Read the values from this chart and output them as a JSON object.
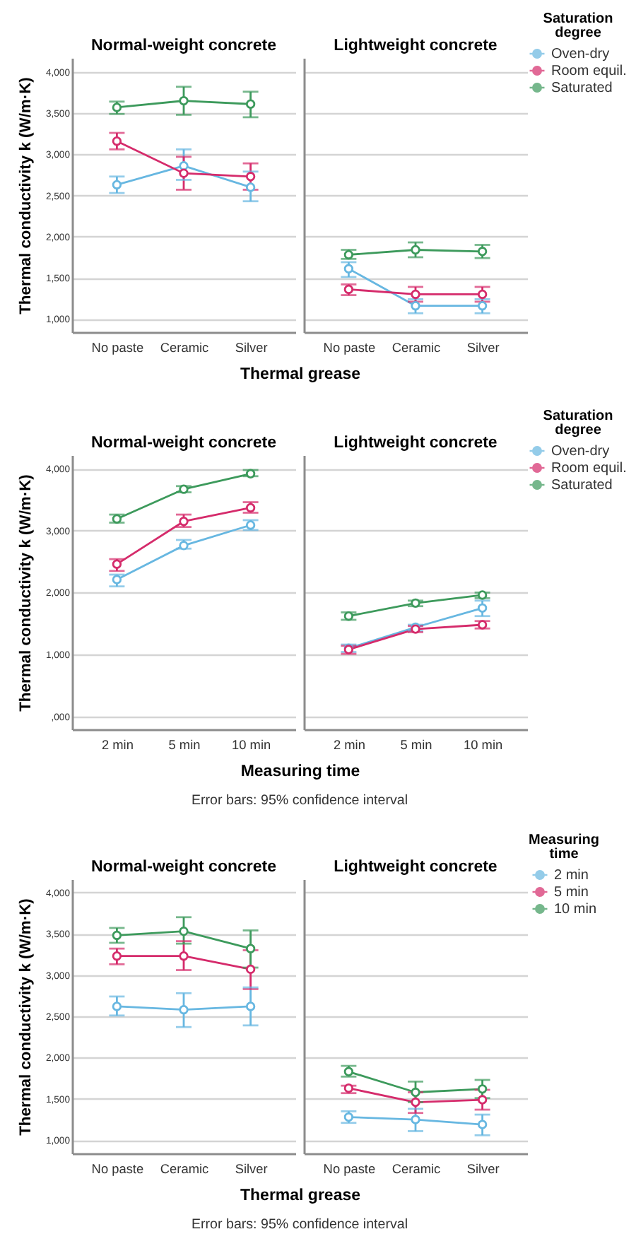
{
  "chart_data": [
    {
      "type": "line",
      "title": "Normal-weight concrete",
      "ylabel": "Thermal conductivity k (W/m·K)",
      "xlabel": "Thermal grease",
      "categories": [
        "No paste",
        "Ceramic",
        "Silver"
      ],
      "ylim": [
        840,
        4170
      ],
      "yticks": [
        {
          "value": 1000,
          "label": "1,000"
        },
        {
          "value": 1500,
          "label": "1,500"
        },
        {
          "value": 2000,
          "label": "2,000"
        },
        {
          "value": 2500,
          "label": "2,500"
        },
        {
          "value": 3000,
          "label": "3,000"
        },
        {
          "value": 3500,
          "label": "3,500"
        },
        {
          "value": 4000,
          "label": "4,000"
        }
      ],
      "grid": "y",
      "marker": "circle",
      "line_style": "solid",
      "legend": "top right",
      "legend_title": "Saturation degree",
      "series": [
        {
          "name": "Oven-dry",
          "color": "#67b7e1",
          "values": [
            2630,
            2860,
            2600
          ],
          "errors": [
            [
              2530,
              2730
            ],
            [
              2690,
              3060
            ],
            [
              2430,
              2790
            ]
          ]
        },
        {
          "name": "Room equil.",
          "color": "#d52b6b",
          "values": [
            3160,
            2770,
            2730
          ],
          "errors": [
            [
              3060,
              3260
            ],
            [
              2570,
              2970
            ],
            [
              2570,
              2890
            ]
          ]
        },
        {
          "name": "Saturated",
          "color": "#3d9a5c",
          "values": [
            3570,
            3650,
            3610
          ],
          "errors": [
            [
              3490,
              3640
            ],
            [
              3480,
              3820
            ],
            [
              3450,
              3760
            ]
          ]
        }
      ]
    },
    {
      "type": "line",
      "title": "Lightweight concrete",
      "categories": [
        "No paste",
        "Ceramic",
        "Silver"
      ],
      "ylim": [
        840,
        4170
      ],
      "yticks": [
        1000,
        1500,
        2000,
        2500,
        3000,
        3500,
        4000
      ],
      "tick_labels": "x",
      "grid": "y",
      "marker": "circle",
      "line_style": "solid",
      "series": [
        {
          "color": "#67b7e1",
          "values": [
            1610,
            1160,
            1160
          ],
          "errors": [
            [
              1510,
              1690
            ],
            [
              1070,
              1240
            ],
            [
              1070,
              1240
            ]
          ]
        },
        {
          "color": "#d52b6b",
          "values": [
            1360,
            1300,
            1300
          ],
          "errors": [
            [
              1290,
              1420
            ],
            [
              1210,
              1390
            ],
            [
              1210,
              1390
            ]
          ]
        },
        {
          "color": "#3d9a5c",
          "values": [
            1780,
            1840,
            1820
          ],
          "errors": [
            [
              1730,
              1840
            ],
            [
              1750,
              1930
            ],
            [
              1740,
              1900
            ]
          ]
        }
      ]
    },
    {
      "type": "line",
      "title": "Normal-weight concrete",
      "ylabel": "Thermal conductivity k (W/m·K)",
      "xlabel": "Measuring time",
      "annotations": [
        "Error bars: 95% confidence interval"
      ],
      "categories": [
        "2 min",
        "5 min",
        "10 min"
      ],
      "ylim": [
        -210,
        4220
      ],
      "yticks": [
        {
          "value": 0,
          "label": ",000"
        },
        {
          "value": 1000,
          "label": "1,000"
        },
        {
          "value": 2000,
          "label": "2,000"
        },
        {
          "value": 3000,
          "label": "3,000"
        },
        {
          "value": 4000,
          "label": "4,000"
        }
      ],
      "grid": "y",
      "marker": "circle",
      "line_style": "solid",
      "legend": "top right",
      "legend_title": "Saturation degree",
      "series": [
        {
          "name": "Oven-dry",
          "color": "#67b7e1",
          "values": [
            2210,
            2760,
            3090
          ],
          "errors": [
            [
              2100,
              2290
            ],
            [
              2710,
              2850
            ],
            [
              3010,
              3170
            ]
          ]
        },
        {
          "name": "Room equil.",
          "color": "#d52b6b",
          "values": [
            2460,
            3150,
            3370
          ],
          "errors": [
            [
              2350,
              2540
            ],
            [
              3060,
              3260
            ],
            [
              3290,
              3460
            ]
          ]
        },
        {
          "name": "Saturated",
          "color": "#3d9a5c",
          "values": [
            3190,
            3670,
            3920
          ],
          "errors": [
            [
              3130,
              3260
            ],
            [
              3620,
              3720
            ],
            [
              3880,
              3980
            ]
          ]
        }
      ]
    },
    {
      "type": "line",
      "title": "Lightweight concrete",
      "categories": [
        "2 min",
        "5 min",
        "10 min"
      ],
      "ylim": [
        -210,
        4220
      ],
      "yticks": [
        0,
        1000,
        2000,
        3000,
        4000
      ],
      "tick_labels": "x",
      "grid": "y",
      "marker": "circle",
      "line_style": "solid",
      "series": [
        {
          "color": "#67b7e1",
          "values": [
            1100,
            1440,
            1750
          ],
          "errors": [
            [
              1040,
              1160
            ],
            [
              1380,
              1480
            ],
            [
              1620,
              1870
            ]
          ]
        },
        {
          "color": "#d52b6b",
          "values": [
            1080,
            1410,
            1480
          ],
          "errors": [
            [
              1010,
              1140
            ],
            [
              1360,
              1460
            ],
            [
              1420,
              1540
            ]
          ]
        },
        {
          "color": "#3d9a5c",
          "values": [
            1620,
            1830,
            1960
          ],
          "errors": [
            [
              1560,
              1680
            ],
            [
              1780,
              1870
            ],
            [
              1910,
              2000
            ]
          ]
        }
      ]
    },
    {
      "type": "line",
      "title": "Normal-weight concrete",
      "ylabel": "Thermal conductivity k (W/m·K)",
      "xlabel": "Thermal grease",
      "annotations": [
        "Error bars: 95% confidence interval"
      ],
      "categories": [
        "No paste",
        "Ceramic",
        "Silver"
      ],
      "ylim": [
        840,
        4160
      ],
      "yticks": [
        {
          "value": 1000,
          "label": "1,000"
        },
        {
          "value": 1500,
          "label": "1,500"
        },
        {
          "value": 2000,
          "label": "2,000"
        },
        {
          "value": 2500,
          "label": "2,500"
        },
        {
          "value": 3000,
          "label": "3,000"
        },
        {
          "value": 3500,
          "label": "3,500"
        },
        {
          "value": 4000,
          "label": "4,000"
        }
      ],
      "grid": "y",
      "marker": "circle",
      "line_style": "solid",
      "legend": "top right",
      "legend_title": "Measuring time",
      "series": [
        {
          "name": "2 min",
          "color": "#67b7e1",
          "values": [
            2620,
            2580,
            2620
          ],
          "errors": [
            [
              2510,
              2740
            ],
            [
              2370,
              2780
            ],
            [
              2390,
              2850
            ]
          ]
        },
        {
          "name": "5 min",
          "color": "#d52b6b",
          "values": [
            3230,
            3230,
            3070
          ],
          "errors": [
            [
              3130,
              3320
            ],
            [
              3060,
              3410
            ],
            [
              2830,
              3300
            ]
          ]
        },
        {
          "name": "10 min",
          "color": "#3d9a5c",
          "values": [
            3480,
            3530,
            3320
          ],
          "errors": [
            [
              3390,
              3570
            ],
            [
              3380,
              3700
            ],
            [
              3090,
              3540
            ]
          ]
        }
      ]
    },
    {
      "type": "line",
      "title": "Lightweight concrete",
      "categories": [
        "No paste",
        "Ceramic",
        "Silver"
      ],
      "ylim": [
        840,
        4160
      ],
      "yticks": [
        1000,
        1500,
        2000,
        2500,
        3000,
        3500,
        4000
      ],
      "tick_labels": "x",
      "grid": "y",
      "marker": "circle",
      "line_style": "solid",
      "series": [
        {
          "color": "#67b7e1",
          "values": [
            1280,
            1250,
            1190
          ],
          "errors": [
            [
              1210,
              1350
            ],
            [
              1110,
              1380
            ],
            [
              1060,
              1310
            ]
          ]
        },
        {
          "color": "#d52b6b",
          "values": [
            1630,
            1460,
            1490
          ],
          "errors": [
            [
              1570,
              1660
            ],
            [
              1330,
              1580
            ],
            [
              1370,
              1610
            ]
          ]
        },
        {
          "color": "#3d9a5c",
          "values": [
            1830,
            1580,
            1620
          ],
          "errors": [
            [
              1770,
              1900
            ],
            [
              1460,
              1710
            ],
            [
              1510,
              1730
            ]
          ]
        }
      ]
    }
  ]
}
